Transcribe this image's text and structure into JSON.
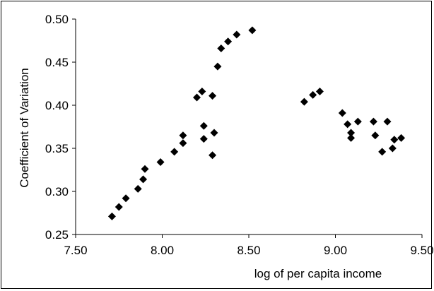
{
  "chart_data": {
    "type": "scatter",
    "title": "",
    "xlabel": "log of per capita income",
    "ylabel": "Coefficient of Variation",
    "xlim": [
      7.5,
      9.5
    ],
    "ylim": [
      0.25,
      0.5
    ],
    "x_ticks": [
      "7.50",
      "8.00",
      "8.50",
      "9.00",
      "9.50"
    ],
    "y_ticks": [
      "0.25",
      "0.30",
      "0.35",
      "0.40",
      "0.45",
      "0.50"
    ],
    "grid": false,
    "legend": "none",
    "marker": "diamond",
    "marker_color": "#000000",
    "series": [
      {
        "points": [
          [
            7.71,
            0.271
          ],
          [
            7.75,
            0.282
          ],
          [
            7.79,
            0.292
          ],
          [
            7.86,
            0.303
          ],
          [
            7.89,
            0.314
          ],
          [
            7.9,
            0.326
          ],
          [
            7.99,
            0.334
          ],
          [
            8.07,
            0.346
          ],
          [
            8.12,
            0.356
          ],
          [
            8.12,
            0.365
          ],
          [
            8.2,
            0.409
          ],
          [
            8.23,
            0.416
          ],
          [
            8.24,
            0.361
          ],
          [
            8.24,
            0.376
          ],
          [
            8.29,
            0.342
          ],
          [
            8.29,
            0.411
          ],
          [
            8.3,
            0.368
          ],
          [
            8.32,
            0.445
          ],
          [
            8.34,
            0.466
          ],
          [
            8.38,
            0.474
          ],
          [
            8.43,
            0.482
          ],
          [
            8.52,
            0.487
          ],
          [
            8.82,
            0.404
          ],
          [
            8.87,
            0.412
          ],
          [
            8.91,
            0.416
          ],
          [
            9.04,
            0.391
          ],
          [
            9.07,
            0.378
          ],
          [
            9.09,
            0.362
          ],
          [
            9.09,
            0.368
          ],
          [
            9.13,
            0.381
          ],
          [
            9.22,
            0.381
          ],
          [
            9.23,
            0.365
          ],
          [
            9.27,
            0.346
          ],
          [
            9.3,
            0.381
          ],
          [
            9.33,
            0.35
          ],
          [
            9.34,
            0.36
          ],
          [
            9.38,
            0.362
          ]
        ]
      }
    ]
  }
}
